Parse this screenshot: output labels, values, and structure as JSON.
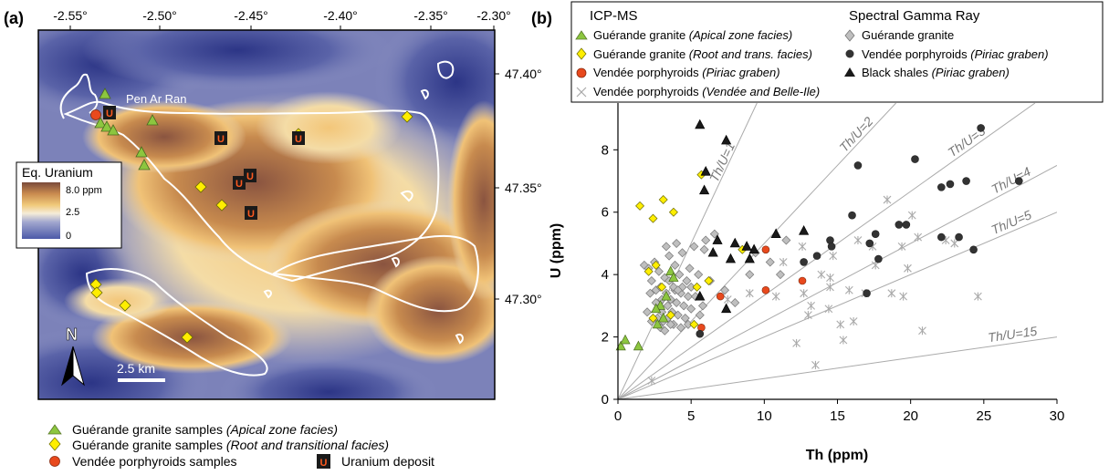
{
  "colors": {
    "green": "#8cc63f",
    "yellow": "#ffee00",
    "red": "#e8491d",
    "gray_diamond": "#bfbfbf",
    "dark": "#333333",
    "uranium_box": "#1a1a1a",
    "uranium_letter": "#ff5a1f"
  },
  "icons": {
    "north": "north-arrow-icon",
    "uranium": "uranium-deposit-icon",
    "triangle": "triangle-marker-icon",
    "diamond": "diamond-marker-icon",
    "circle": "circle-marker-icon",
    "asterisk": "asterisk-marker-icon"
  },
  "panel_a": {
    "label": "(a)",
    "top_ticks": [
      "-2.55°",
      "-2.50°",
      "-2.45°",
      "-2.40°",
      "-2.35°",
      "-2.30°"
    ],
    "right_ticks": [
      "47.40°",
      "47.35°",
      "47.30°"
    ],
    "place_label": "Pen Ar Ran",
    "colorbar": {
      "title": "Eq. Uranium",
      "max": "8.0 ppm",
      "mid": "2.5",
      "min": "0"
    },
    "north": "N",
    "scale": "2.5 km",
    "uranium_letter": "U",
    "legend": [
      {
        "text": "Guérande granite samples ",
        "italic": "(Apical zone facies)"
      },
      {
        "text": "Guérande granite samples ",
        "italic": "(Root and transitional facies)"
      },
      {
        "text": "Vendée porphyroids samples",
        "italic": ""
      },
      {
        "text": "Uranium deposit",
        "italic": ""
      }
    ]
  },
  "panel_b": {
    "label": "(b)",
    "legend_left_title": "ICP-MS",
    "legend_right_title": "Spectral Gamma Ray",
    "legend_left": [
      {
        "text": "Guérande granite ",
        "italic": "(Apical zone facies)"
      },
      {
        "text": "Guérande granite ",
        "italic": "(Root and trans. facies)"
      },
      {
        "text": "Vendée porphyroids ",
        "italic": "(Piriac graben)"
      },
      {
        "text": "Vendée porphyroids ",
        "italic": "(Vendée and Belle-Ile)"
      }
    ],
    "legend_right": [
      {
        "text": "Guérande granite",
        "italic": ""
      },
      {
        "text": "Vendée porphyroids ",
        "italic": "(Piriac graben)"
      },
      {
        "text": "Black shales ",
        "italic": "(Piriac graben)"
      }
    ]
  },
  "chart_data": {
    "type": "scatter",
    "xlabel": "Th (ppm)",
    "ylabel": "U (ppm)",
    "xlim": [
      0,
      30
    ],
    "ylim": [
      0,
      9.5
    ],
    "xticks": [
      0,
      5,
      10,
      15,
      20,
      25,
      30
    ],
    "yticks": [
      0,
      2,
      4,
      6,
      8
    ],
    "ratio_lines": [
      {
        "ratio": 1,
        "label": "Th/U=1"
      },
      {
        "ratio": 2,
        "label": "Th/U=2"
      },
      {
        "ratio": 3,
        "label": "Th/U=3"
      },
      {
        "ratio": 4,
        "label": "Th/U=4"
      },
      {
        "ratio": 5,
        "label": "Th/U=5"
      },
      {
        "ratio": 15,
        "label": "Th/U=15"
      }
    ],
    "series": [
      {
        "name": "Guérande granite (Apical zone facies)",
        "marker": "triangle",
        "color": "#8cc63f",
        "points": [
          [
            0.2,
            1.7
          ],
          [
            0.5,
            1.9
          ],
          [
            1.4,
            1.7
          ],
          [
            3.6,
            4.1
          ],
          [
            3.8,
            3.9
          ],
          [
            3.3,
            3.3
          ],
          [
            2.9,
            3.0
          ],
          [
            2.6,
            2.9
          ],
          [
            3.1,
            2.6
          ],
          [
            2.7,
            2.4
          ]
        ]
      },
      {
        "name": "Guérande granite (Root and trans. facies)",
        "marker": "diamond",
        "color": "#ffee00",
        "points": [
          [
            1.5,
            6.2
          ],
          [
            2.4,
            5.8
          ],
          [
            3.1,
            6.4
          ],
          [
            3.8,
            6.0
          ],
          [
            5.7,
            7.2
          ],
          [
            2.6,
            4.3
          ],
          [
            2.1,
            4.1
          ],
          [
            5.4,
            3.6
          ],
          [
            6.2,
            3.8
          ],
          [
            8.5,
            4.8
          ],
          [
            2.4,
            2.6
          ],
          [
            3.6,
            2.7
          ],
          [
            5.2,
            2.4
          ],
          [
            3.0,
            3.6
          ]
        ]
      },
      {
        "name": "Vendée porphyroids (Piriac graben)",
        "marker": "circle",
        "color": "#e8491d",
        "points": [
          [
            5.7,
            2.3
          ],
          [
            7.0,
            3.3
          ],
          [
            10.1,
            3.5
          ],
          [
            10.1,
            4.8
          ],
          [
            12.6,
            3.8
          ]
        ]
      },
      {
        "name": "Vendée porphyroids (Vendée and Belle-Ile)",
        "marker": "asterisk",
        "color": "#aaaaaa",
        "points": [
          [
            2.3,
            0.6
          ],
          [
            7.5,
            3.2
          ],
          [
            9.0,
            3.4
          ],
          [
            10.8,
            3.3
          ],
          [
            11.3,
            4.4
          ],
          [
            12.2,
            1.8
          ],
          [
            12.6,
            4.9
          ],
          [
            12.7,
            3.4
          ],
          [
            13.0,
            2.7
          ],
          [
            13.2,
            3.0
          ],
          [
            13.5,
            1.1
          ],
          [
            13.9,
            4.0
          ],
          [
            14.4,
            2.9
          ],
          [
            14.5,
            3.6
          ],
          [
            14.5,
            3.9
          ],
          [
            14.7,
            4.6
          ],
          [
            15.2,
            2.4
          ],
          [
            15.4,
            1.9
          ],
          [
            15.8,
            3.5
          ],
          [
            16.1,
            2.5
          ],
          [
            16.4,
            5.1
          ],
          [
            16.9,
            3.4
          ],
          [
            17.4,
            4.9
          ],
          [
            17.6,
            4.3
          ],
          [
            18.4,
            6.4
          ],
          [
            18.7,
            3.4
          ],
          [
            19.4,
            4.9
          ],
          [
            19.5,
            3.3
          ],
          [
            19.8,
            4.2
          ],
          [
            20.1,
            5.9
          ],
          [
            20.5,
            5.2
          ],
          [
            20.8,
            2.2
          ],
          [
            22.4,
            5.1
          ],
          [
            23.0,
            5.0
          ],
          [
            24.6,
            3.3
          ]
        ]
      },
      {
        "name": "Guérande granite (SGR)",
        "marker": "diamond",
        "color": "#bfbfbf",
        "points": [
          [
            1.8,
            4.3
          ],
          [
            2.1,
            4.2
          ],
          [
            2.3,
            3.8
          ],
          [
            2.2,
            3.4
          ],
          [
            2.0,
            2.8
          ],
          [
            2.3,
            2.5
          ],
          [
            2.6,
            3.5
          ],
          [
            2.6,
            3.1
          ],
          [
            2.7,
            2.6
          ],
          [
            2.8,
            4.1
          ],
          [
            2.9,
            3.6
          ],
          [
            3.0,
            3.2
          ],
          [
            3.0,
            2.8
          ],
          [
            3.1,
            2.5
          ],
          [
            3.2,
            3.9
          ],
          [
            3.3,
            3.4
          ],
          [
            3.4,
            3.0
          ],
          [
            3.4,
            2.6
          ],
          [
            3.5,
            3.8
          ],
          [
            3.5,
            4.6
          ],
          [
            3.6,
            3.2
          ],
          [
            3.7,
            2.8
          ],
          [
            3.8,
            2.4
          ],
          [
            3.9,
            3.5
          ],
          [
            3.9,
            4.3
          ],
          [
            4.0,
            3.1
          ],
          [
            4.1,
            2.7
          ],
          [
            4.2,
            4.0
          ],
          [
            4.3,
            3.4
          ],
          [
            4.3,
            2.3
          ],
          [
            4.4,
            4.7
          ],
          [
            4.5,
            3.0
          ],
          [
            4.6,
            2.6
          ],
          [
            4.7,
            3.8
          ],
          [
            4.8,
            3.3
          ],
          [
            4.8,
            2.4
          ],
          [
            4.9,
            4.2
          ],
          [
            5.0,
            3.6
          ],
          [
            5.0,
            2.9
          ],
          [
            5.2,
            4.9
          ],
          [
            5.3,
            3.3
          ],
          [
            5.5,
            4.0
          ],
          [
            5.6,
            2.7
          ],
          [
            5.8,
            3.0
          ],
          [
            5.9,
            4.8
          ],
          [
            6.0,
            5.1
          ],
          [
            6.3,
            3.8
          ],
          [
            6.6,
            5.3
          ],
          [
            7.3,
            3.5
          ],
          [
            8.0,
            3.1
          ],
          [
            9.0,
            4.0
          ],
          [
            9.4,
            4.7
          ],
          [
            10.4,
            4.4
          ],
          [
            11.1,
            4.0
          ],
          [
            11.5,
            5.1
          ],
          [
            2.5,
            4.4
          ],
          [
            3.3,
            4.9
          ],
          [
            4.0,
            5.0
          ],
          [
            3.8,
            3.6
          ],
          [
            4.4,
            3.6
          ],
          [
            2.9,
            2.3
          ],
          [
            3.2,
            2.2
          ],
          [
            3.6,
            2.4
          ],
          [
            4.1,
            3.5
          ]
        ]
      },
      {
        "name": "Vendée porphyroids (Piriac graben) (SGR)",
        "marker": "circle",
        "color": "#333333",
        "points": [
          [
            5.6,
            2.1
          ],
          [
            12.7,
            4.4
          ],
          [
            13.6,
            4.6
          ],
          [
            14.5,
            5.1
          ],
          [
            14.6,
            4.9
          ],
          [
            16.0,
            5.9
          ],
          [
            16.4,
            7.5
          ],
          [
            17.2,
            5.0
          ],
          [
            17.6,
            5.3
          ],
          [
            17.8,
            4.5
          ],
          [
            19.2,
            5.6
          ],
          [
            19.7,
            5.6
          ],
          [
            20.3,
            7.7
          ],
          [
            22.1,
            6.8
          ],
          [
            22.1,
            5.2
          ],
          [
            22.7,
            6.9
          ],
          [
            23.3,
            5.2
          ],
          [
            23.8,
            7.0
          ],
          [
            24.3,
            4.8
          ],
          [
            24.8,
            8.7
          ],
          [
            27.4,
            7.0
          ],
          [
            17.0,
            3.4
          ]
        ]
      },
      {
        "name": "Black shales (Piriac graben)",
        "marker": "triangle",
        "color": "#1a1a1a",
        "points": [
          [
            5.6,
            8.8
          ],
          [
            5.9,
            6.7
          ],
          [
            6.0,
            7.3
          ],
          [
            7.4,
            8.3
          ],
          [
            6.8,
            5.1
          ],
          [
            7.7,
            4.5
          ],
          [
            8.0,
            5.0
          ],
          [
            8.8,
            4.9
          ],
          [
            9.3,
            4.8
          ],
          [
            10.8,
            5.3
          ],
          [
            12.7,
            5.4
          ],
          [
            5.6,
            3.3
          ],
          [
            7.4,
            2.9
          ],
          [
            6.5,
            4.7
          ],
          [
            9.0,
            4.5
          ]
        ]
      }
    ]
  }
}
